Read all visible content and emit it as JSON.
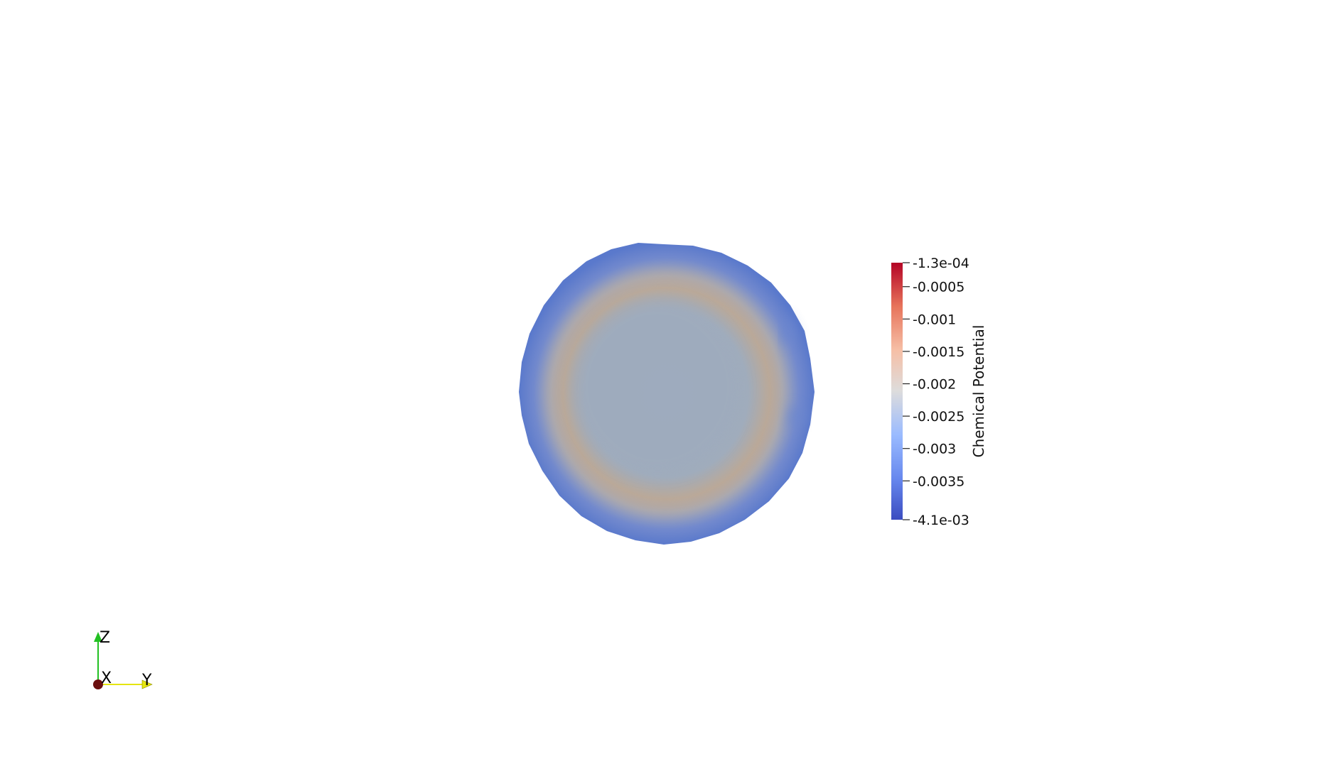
{
  "scene": {
    "background": "#ffffff",
    "surface_colors": {
      "edge": "#5f7fcf",
      "ring": "#b9a99a",
      "core": "#9eabbe"
    }
  },
  "color_bar": {
    "title": "Chemical Potential",
    "range": [
      -0.0041,
      -0.00013
    ],
    "max_label": "-1.3e-04",
    "min_label": "-4.1e-03",
    "ticks": [
      {
        "value": -0.0005,
        "label": "-0.0005"
      },
      {
        "value": -0.001,
        "label": "-0.001"
      },
      {
        "value": -0.0015,
        "label": "-0.0015"
      },
      {
        "value": -0.002,
        "label": "-0.002"
      },
      {
        "value": -0.0025,
        "label": "-0.0025"
      },
      {
        "value": -0.003,
        "label": "-0.003"
      },
      {
        "value": -0.0035,
        "label": "-0.0035"
      }
    ],
    "colors": [
      "#3b4cc0",
      "#7396f5",
      "#b0cbfc",
      "#dddcdc",
      "#f6bfa6",
      "#ea7b60",
      "#b40426"
    ]
  },
  "orientation_axes": {
    "z": {
      "label": "Z",
      "color": "#22c022"
    },
    "x": {
      "label": "X",
      "color": "#6b0f0f"
    },
    "y": {
      "label": "Y",
      "color": "#e5e510"
    }
  }
}
